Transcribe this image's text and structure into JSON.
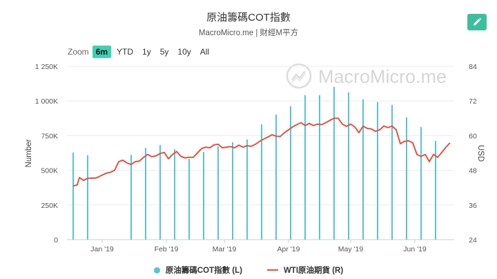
{
  "header": {
    "title": "原油籌碼COT指數",
    "subtitle": "MacroMicro.me | 財經M平方"
  },
  "toolbar": {
    "zoom_label": "Zoom",
    "zoom_options": [
      "6m",
      "YTD",
      "1y",
      "5y",
      "10y",
      "All"
    ],
    "zoom_active": "6m"
  },
  "watermark": "MacroMicro.me",
  "colors": {
    "bars": "#56c3d6",
    "line": "#e0533f",
    "accent": "#3dbf9e"
  },
  "chart_data": {
    "type": "bar+line",
    "ylabel": "Number",
    "y2label": "USD",
    "ylim": [
      0,
      1250000
    ],
    "y2lim": [
      24,
      84
    ],
    "y_ticks": [
      "0",
      "250K",
      "500K",
      "750K",
      "1 000K",
      "1 250K"
    ],
    "y2_ticks": [
      "24",
      "36",
      "48",
      "60",
      "72",
      "84"
    ],
    "x_ticks": [
      {
        "label": "Jan '19",
        "day": 15
      },
      {
        "label": "Feb '19",
        "day": 46
      },
      {
        "label": "Mar '19",
        "day": 74
      },
      {
        "label": "Apr '19",
        "day": 105
      },
      {
        "label": "May '19",
        "day": 135
      },
      {
        "label": "Jun '19",
        "day": 166
      }
    ],
    "x_range_days": [
      -2,
      185
    ],
    "series": [
      {
        "name": "原油籌碼COT指數 (L)",
        "type": "bar",
        "x_days": [
          1,
          8,
          15,
          22,
          29,
          36,
          43,
          50,
          57,
          64,
          71,
          78,
          85,
          92,
          99,
          106,
          113,
          120,
          127,
          134,
          141,
          148,
          155,
          162,
          169,
          176
        ],
        "values": [
          628000,
          608000,
          0,
          0,
          612000,
          662000,
          682000,
          652000,
          582000,
          632000,
          672000,
          702000,
          722000,
          832000,
          902000,
          962000,
          1042000,
          1042000,
          1102000,
          1062000,
          1012000,
          992000,
          972000,
          882000,
          812000,
          712000
        ]
      },
      {
        "name": "WTI原油期貨 (R)",
        "type": "line",
        "x_days": [
          1,
          3,
          4,
          6,
          8,
          10,
          12,
          14,
          17,
          19,
          21,
          23,
          25,
          27,
          29,
          31,
          33,
          35,
          37,
          39,
          41,
          43,
          45,
          47,
          49,
          51,
          53,
          55,
          57,
          59,
          61,
          63,
          65,
          67,
          69,
          71,
          73,
          75,
          77,
          79,
          81,
          83,
          85,
          87,
          89,
          91,
          93,
          95,
          97,
          99,
          101,
          103,
          105,
          107,
          109,
          111,
          113,
          115,
          117,
          119,
          121,
          123,
          125,
          127,
          129,
          131,
          133,
          135,
          137,
          139,
          141,
          143,
          145,
          147,
          149,
          151,
          153,
          155,
          157,
          159,
          161,
          163,
          165,
          167,
          169,
          171,
          173,
          175,
          177,
          179,
          181,
          183
        ],
        "values": [
          42.5,
          43.0,
          45.5,
          44.5,
          45.2,
          45.3,
          45.3,
          46.0,
          47.0,
          47.3,
          48.0,
          51.0,
          51.5,
          50.5,
          50.0,
          51.0,
          51.2,
          52.5,
          53.5,
          52.7,
          53.0,
          53.8,
          54.2,
          52.0,
          53.5,
          54.5,
          52.8,
          52.3,
          52.5,
          52.5,
          54.0,
          55.5,
          56.0,
          55.8,
          56.8,
          57.0,
          55.8,
          56.0,
          56.2,
          55.8,
          56.7,
          56.0,
          56.5,
          56.3,
          57.0,
          58.0,
          58.8,
          59.5,
          60.3,
          59.8,
          59.7,
          61.0,
          62.0,
          63.0,
          63.8,
          64.5,
          63.5,
          64.2,
          63.5,
          64.0,
          63.8,
          64.5,
          65.3,
          66.0,
          66.0,
          64.0,
          63.2,
          64.0,
          63.0,
          61.0,
          63.3,
          62.5,
          62.3,
          61.5,
          62.0,
          63.3,
          62.8,
          63.3,
          62.0,
          57.2,
          58.0,
          58.2,
          57.5,
          53.5,
          52.8,
          53.5,
          51.0,
          53.5,
          52.5,
          54.2,
          56.0,
          57.5
        ]
      }
    ]
  }
}
